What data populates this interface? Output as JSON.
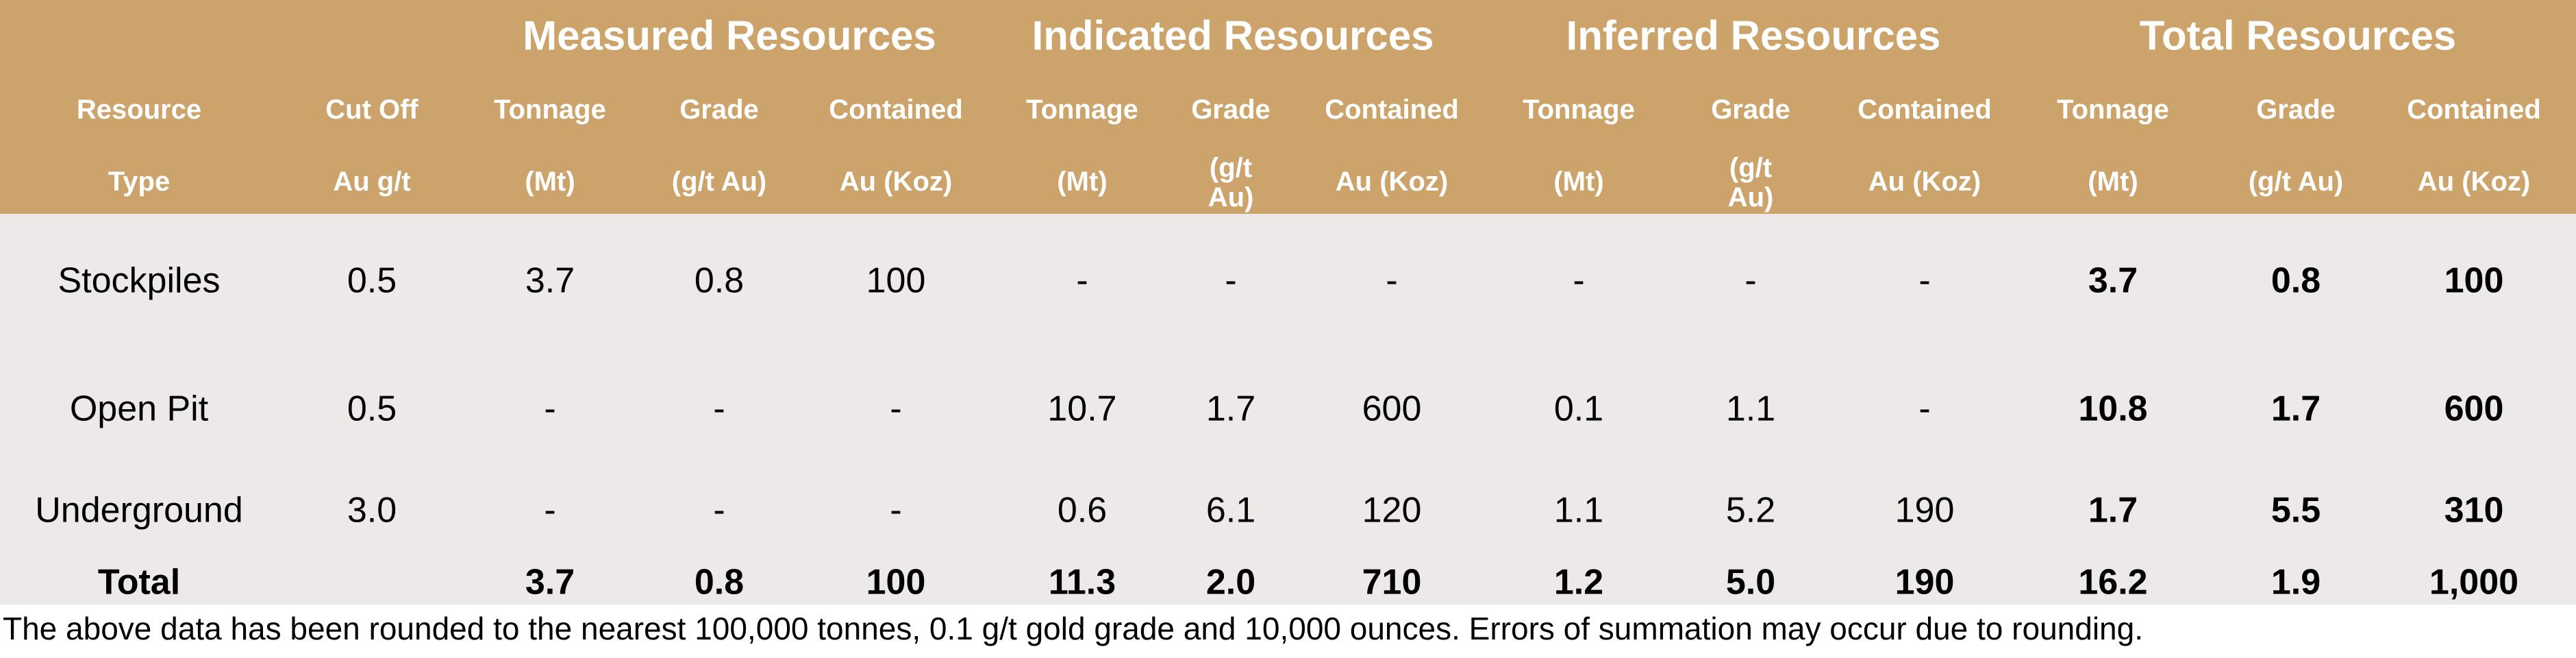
{
  "colors": {
    "header_bg": "#CCA46B",
    "body_bg": "#ECE9E8",
    "header_text": "#FFFFFF",
    "body_text": "#000000"
  },
  "table": {
    "groups": [
      "Measured Resources",
      "Indicated Resources",
      "Inferred Resources",
      "Total Resources"
    ],
    "columns": [
      {
        "l1": "Resource",
        "l2": "Type"
      },
      {
        "l1": "Cut Off",
        "l2": "Au g/t"
      },
      {
        "l1": "Tonnage",
        "l2": "(Mt)"
      },
      {
        "l1": "Grade",
        "l2": "(g/t Au)"
      },
      {
        "l1": "Contained",
        "l2": "Au (Koz)"
      },
      {
        "l1": "Tonnage",
        "l2": "(Mt)"
      },
      {
        "l1": "Grade",
        "l2": "(g/t",
        "l3": "Au)"
      },
      {
        "l1": "Contained",
        "l2": "Au (Koz)"
      },
      {
        "l1": "Tonnage",
        "l2": "(Mt)"
      },
      {
        "l1": "Grade",
        "l2": "(g/t",
        "l3": "Au)"
      },
      {
        "l1": "Contained",
        "l2": "Au (Koz)"
      },
      {
        "l1": "Tonnage",
        "l2": "(Mt)"
      },
      {
        "l1": "Grade",
        "l2": "(g/t Au)"
      },
      {
        "l1": "Contained",
        "l2": "Au (Koz)"
      }
    ],
    "rows": [
      {
        "name": "stockpiles",
        "cells": [
          "Stockpiles",
          "0.5",
          "3.7",
          "0.8",
          "100",
          "-",
          "-",
          "-",
          "-",
          "-",
          "-",
          "3.7",
          "0.8",
          "100"
        ]
      },
      {
        "name": "open-pit",
        "cells": [
          "Open Pit",
          "0.5",
          "-",
          "-",
          "-",
          "10.7",
          "1.7",
          "600",
          "0.1",
          "1.1",
          "-",
          "10.8",
          "1.7",
          "600"
        ]
      },
      {
        "name": "underground",
        "cells": [
          "Underground",
          "3.0",
          "-",
          "-",
          "-",
          "0.6",
          "6.1",
          "120",
          "1.1",
          "5.2",
          "190",
          "1.7",
          "5.5",
          "310"
        ]
      }
    ],
    "total": [
      "Total",
      "",
      "3.7",
      "0.8",
      "100",
      "11.3",
      "2.0",
      "710",
      "1.2",
      "5.0",
      "190",
      "16.2",
      "1.9",
      "1,000"
    ]
  },
  "footnote": "The above data has been rounded to the nearest 100,000 tonnes, 0.1 g/t gold grade and 10,000 ounces. Errors of summation may occur due to rounding."
}
